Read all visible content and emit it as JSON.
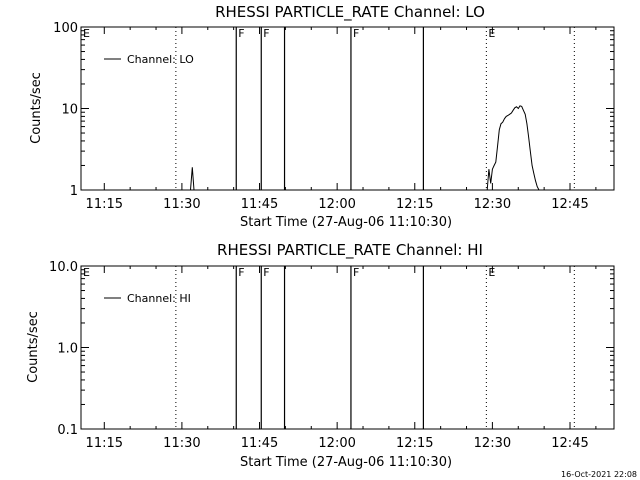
{
  "footer_timestamp": "16-Oct-2021 22:08",
  "chart_data": [
    {
      "type": "line",
      "title": "RHESSI PARTICLE_RATE Channel: LO",
      "xlabel": "Start Time (27-Aug-06 11:10:30)",
      "ylabel": "Counts/sec",
      "yscale": "log",
      "xlim_minutes_after_11_00": [
        10.5,
        113.5
      ],
      "ylim": [
        1,
        100
      ],
      "x_ticks": [
        "11:15",
        "11:30",
        "11:45",
        "12:00",
        "12:15",
        "12:30",
        "12:45"
      ],
      "y_ticks": [
        "1",
        "10",
        "100"
      ],
      "legend": "Channel: LO",
      "flags": [
        {
          "label": "E",
          "time": "11:10:30",
          "style": "none"
        },
        {
          "label": "",
          "time": "11:28:50",
          "style": "dotted"
        },
        {
          "label": "F",
          "time": "11:40:30",
          "style": "solid"
        },
        {
          "label": "F",
          "time": "11:45:20",
          "style": "solid"
        },
        {
          "label": "",
          "time": "11:49:50",
          "style": "solid"
        },
        {
          "label": "F",
          "time": "12:02:40",
          "style": "solid"
        },
        {
          "label": "",
          "time": "12:16:40",
          "style": "solid"
        },
        {
          "label": "E",
          "time": "12:28:50",
          "style": "dotted"
        },
        {
          "label": "",
          "time": "12:45:50",
          "style": "dotted"
        }
      ],
      "series": [
        {
          "name": "Channel: LO",
          "segments": [
            {
              "x": [
                "11:31:40",
                "11:32:00",
                "11:32:20"
              ],
              "y": [
                1,
                1.9,
                1
              ]
            },
            {
              "x": [
                "12:29:00",
                "12:29:20",
                "12:29:40",
                "12:30:00",
                "12:30:20",
                "12:30:40",
                "12:31:00",
                "12:31:20",
                "12:31:40",
                "12:32:00",
                "12:32:20",
                "12:32:40",
                "12:33:00",
                "12:33:20",
                "12:33:40",
                "12:34:00",
                "12:34:20",
                "12:34:40",
                "12:35:00",
                "12:35:20",
                "12:35:40",
                "12:36:00",
                "12:36:20",
                "12:36:40",
                "12:37:00",
                "12:37:20",
                "12:37:40",
                "12:38:00",
                "12:38:20",
                "12:38:40",
                "12:39:00"
              ],
              "y": [
                1,
                1.8,
                1.2,
                1.8,
                2.0,
                2.2,
                3.5,
                5.5,
                6.5,
                6.8,
                7.5,
                8.0,
                8.2,
                8.5,
                8.8,
                9.5,
                10.2,
                10.5,
                10.0,
                10.8,
                10.6,
                9.5,
                8.5,
                6.5,
                4.5,
                3.0,
                2.0,
                1.6,
                1.3,
                1.1,
                1.0
              ]
            }
          ]
        }
      ]
    },
    {
      "type": "line",
      "title": "RHESSI PARTICLE_RATE Channel: HI",
      "xlabel": "Start Time (27-Aug-06 11:10:30)",
      "ylabel": "Counts/sec",
      "yscale": "log",
      "xlim_minutes_after_11_00": [
        10.5,
        113.5
      ],
      "ylim": [
        0.1,
        10
      ],
      "x_ticks": [
        "11:15",
        "11:30",
        "11:45",
        "12:00",
        "12:15",
        "12:30",
        "12:45"
      ],
      "y_ticks": [
        "0.1",
        "1.0",
        "10.0"
      ],
      "legend": "Channel: HI",
      "flags": [
        {
          "label": "E",
          "time": "11:10:30",
          "style": "none"
        },
        {
          "label": "",
          "time": "11:28:50",
          "style": "dotted"
        },
        {
          "label": "F",
          "time": "11:40:30",
          "style": "solid"
        },
        {
          "label": "F",
          "time": "11:45:20",
          "style": "solid"
        },
        {
          "label": "",
          "time": "11:49:50",
          "style": "solid"
        },
        {
          "label": "F",
          "time": "12:02:40",
          "style": "solid"
        },
        {
          "label": "",
          "time": "12:16:40",
          "style": "solid"
        },
        {
          "label": "E",
          "time": "12:28:50",
          "style": "dotted"
        },
        {
          "label": "",
          "time": "12:45:50",
          "style": "dotted"
        }
      ],
      "series": [
        {
          "name": "Channel: HI",
          "segments": []
        }
      ]
    }
  ]
}
